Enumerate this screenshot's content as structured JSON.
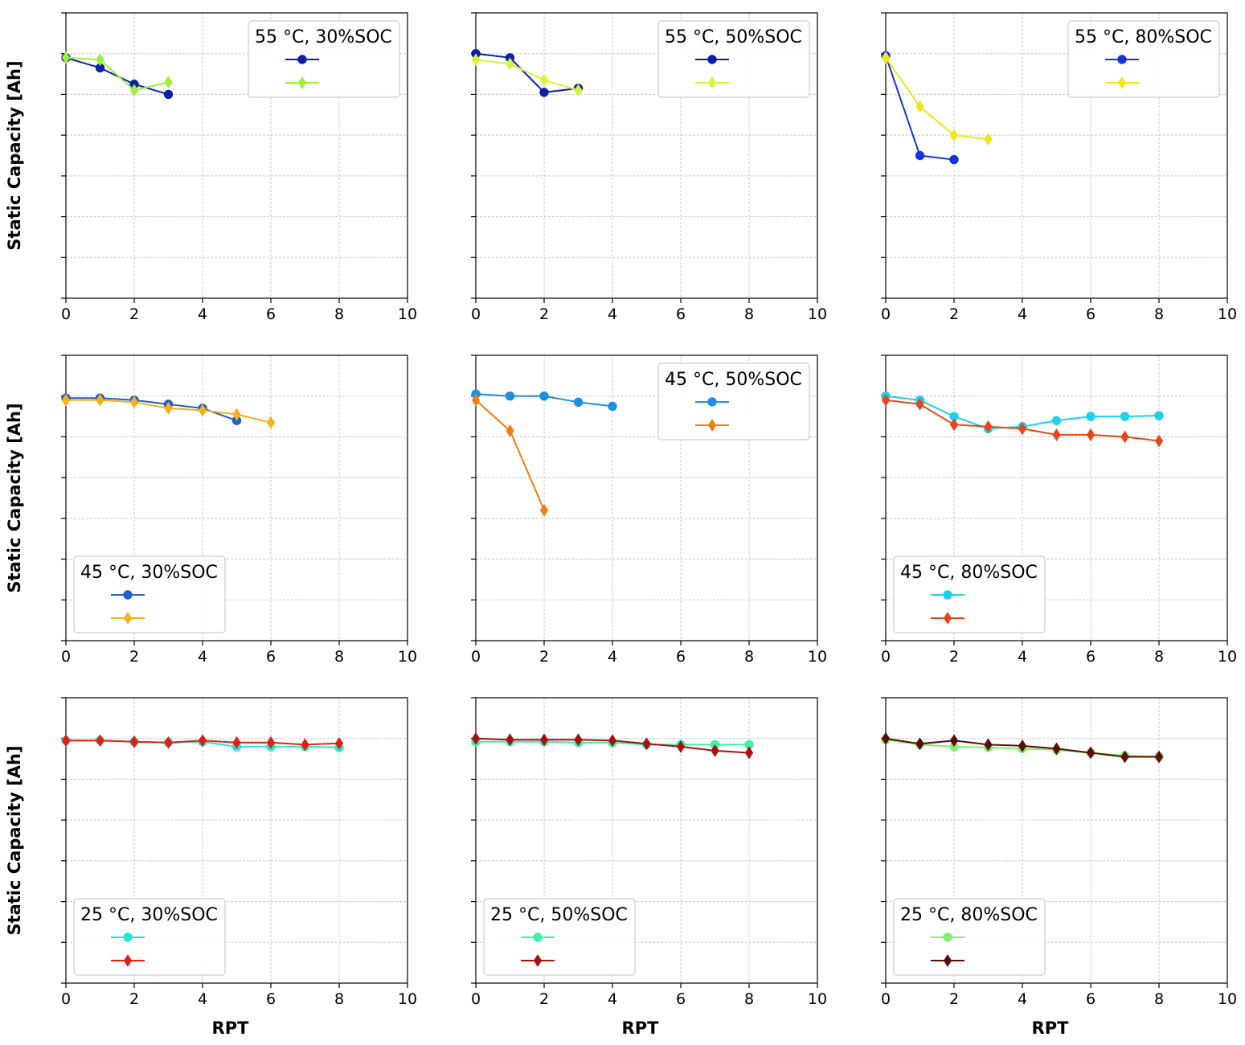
{
  "chart_data": [
    {
      "type": "line",
      "title": "55 °C, 30%SOC",
      "xlabel": "",
      "ylabel": "Static Capacity [Ah]",
      "xlim": [
        0,
        10
      ],
      "ylim": [
        0,
        7
      ],
      "xticks": [
        "0",
        "2",
        "4",
        "6",
        "8",
        "10"
      ],
      "grid": true,
      "legend_position": "upper right",
      "legend_entries": [
        "",
        ""
      ],
      "series": [
        {
          "name": "",
          "color": "#0c1fa6",
          "marker": "circle",
          "x": [
            0,
            1,
            2,
            3
          ],
          "y": [
            5.9,
            5.65,
            5.25,
            5.0
          ]
        },
        {
          "name": "",
          "color": "#9af23a",
          "marker": "diamond",
          "x": [
            0,
            1,
            2,
            3
          ],
          "y": [
            5.9,
            5.85,
            5.1,
            5.3
          ]
        }
      ]
    },
    {
      "type": "line",
      "title": "55 °C, 50%SOC",
      "xlabel": "",
      "ylabel": "",
      "xlim": [
        0,
        10
      ],
      "ylim": [
        0,
        7
      ],
      "xticks": [
        "0",
        "2",
        "4",
        "6",
        "8",
        "10"
      ],
      "grid": true,
      "legend_position": "upper right",
      "legend_entries": [
        "",
        ""
      ],
      "series": [
        {
          "name": "",
          "color": "#0c1fa6",
          "marker": "circle",
          "x": [
            0,
            1,
            2,
            3
          ],
          "y": [
            6.0,
            5.9,
            5.05,
            5.15
          ]
        },
        {
          "name": "",
          "color": "#d2f537",
          "marker": "diamond",
          "x": [
            0,
            1,
            2,
            3
          ],
          "y": [
            5.85,
            5.75,
            5.35,
            5.1
          ]
        }
      ]
    },
    {
      "type": "line",
      "title": "55 °C, 80%SOC",
      "xlabel": "",
      "ylabel": "",
      "xlim": [
        0,
        10
      ],
      "ylim": [
        0,
        7
      ],
      "xticks": [
        "0",
        "2",
        "4",
        "6",
        "8",
        "10"
      ],
      "grid": true,
      "legend_position": "upper right",
      "legend_entries": [
        "",
        ""
      ],
      "series": [
        {
          "name": "",
          "color": "#1432d9",
          "marker": "circle",
          "x": [
            0,
            1,
            2
          ],
          "y": [
            5.95,
            3.5,
            3.4
          ]
        },
        {
          "name": "",
          "color": "#f2e51c",
          "marker": "diamond",
          "x": [
            0,
            1,
            2,
            3
          ],
          "y": [
            5.9,
            4.7,
            4.0,
            3.9
          ]
        }
      ]
    },
    {
      "type": "line",
      "title": "45 °C, 30%SOC",
      "xlabel": "",
      "ylabel": "Static Capacity [Ah]",
      "xlim": [
        0,
        10
      ],
      "ylim": [
        0,
        7
      ],
      "xticks": [
        "0",
        "2",
        "4",
        "6",
        "8",
        "10"
      ],
      "grid": true,
      "legend_position": "lower left",
      "legend_entries": [
        "",
        ""
      ],
      "series": [
        {
          "name": "",
          "color": "#1f5fcc",
          "marker": "circle",
          "x": [
            0,
            1,
            2,
            3,
            4,
            5
          ],
          "y": [
            5.95,
            5.95,
            5.9,
            5.8,
            5.7,
            5.4
          ]
        },
        {
          "name": "",
          "color": "#f5b01a",
          "marker": "diamond",
          "x": [
            0,
            1,
            2,
            3,
            4,
            5,
            6
          ],
          "y": [
            5.9,
            5.9,
            5.85,
            5.7,
            5.65,
            5.55,
            5.35
          ]
        }
      ]
    },
    {
      "type": "line",
      "title": "45 °C, 50%SOC",
      "xlabel": "",
      "ylabel": "",
      "xlim": [
        0,
        10
      ],
      "ylim": [
        0,
        7
      ],
      "xticks": [
        "0",
        "2",
        "4",
        "6",
        "8",
        "10"
      ],
      "grid": true,
      "legend_position": "upper right",
      "legend_entries": [
        "",
        ""
      ],
      "series": [
        {
          "name": "",
          "color": "#1a8fe0",
          "marker": "circle",
          "x": [
            0,
            1,
            2,
            3,
            4
          ],
          "y": [
            6.05,
            6.0,
            6.0,
            5.85,
            5.75
          ]
        },
        {
          "name": "",
          "color": "#f07c12",
          "marker": "diamond",
          "x": [
            0,
            1,
            2
          ],
          "y": [
            5.9,
            5.15,
            3.2
          ]
        }
      ]
    },
    {
      "type": "line",
      "title": "45 °C, 80%SOC",
      "xlabel": "",
      "ylabel": "",
      "xlim": [
        0,
        10
      ],
      "ylim": [
        0,
        7
      ],
      "xticks": [
        "0",
        "2",
        "4",
        "6",
        "8",
        "10"
      ],
      "grid": true,
      "legend_position": "lower left",
      "legend_entries": [
        "",
        ""
      ],
      "series": [
        {
          "name": "",
          "color": "#1fd0ea",
          "marker": "circle",
          "x": [
            0,
            1,
            2,
            3,
            4,
            5,
            6,
            7,
            8
          ],
          "y": [
            6.0,
            5.9,
            5.5,
            5.2,
            5.25,
            5.4,
            5.5,
            5.5,
            5.52
          ]
        },
        {
          "name": "",
          "color": "#e8461a",
          "marker": "diamond",
          "x": [
            0,
            1,
            2,
            3,
            4,
            5,
            6,
            7,
            8
          ],
          "y": [
            5.9,
            5.8,
            5.3,
            5.25,
            5.2,
            5.05,
            5.05,
            5.0,
            4.9
          ]
        }
      ]
    },
    {
      "type": "line",
      "title": "25 °C, 30%SOC",
      "xlabel": "RPT",
      "ylabel": "Static Capacity [Ah]",
      "xlim": [
        0,
        10
      ],
      "ylim": [
        0,
        7
      ],
      "xticks": [
        "0",
        "2",
        "4",
        "6",
        "8",
        "10"
      ],
      "grid": true,
      "legend_position": "lower left",
      "legend_entries": [
        "",
        ""
      ],
      "series": [
        {
          "name": "",
          "color": "#28e6d2",
          "marker": "circle",
          "x": [
            0,
            1,
            2,
            3,
            4,
            5,
            6,
            7,
            8
          ],
          "y": [
            5.95,
            5.95,
            5.92,
            5.9,
            5.92,
            5.8,
            5.8,
            5.8,
            5.78
          ]
        },
        {
          "name": "",
          "color": "#e02015",
          "marker": "diamond",
          "x": [
            0,
            1,
            2,
            3,
            4,
            5,
            6,
            7,
            8
          ],
          "y": [
            5.95,
            5.95,
            5.92,
            5.9,
            5.95,
            5.9,
            5.9,
            5.85,
            5.88
          ]
        }
      ]
    },
    {
      "type": "line",
      "title": "25 °C, 50%SOC",
      "xlabel": "RPT",
      "ylabel": "",
      "xlim": [
        0,
        10
      ],
      "ylim": [
        0,
        7
      ],
      "xticks": [
        "0",
        "2",
        "4",
        "6",
        "8",
        "10"
      ],
      "grid": true,
      "legend_position": "lower left",
      "legend_entries": [
        "",
        ""
      ],
      "series": [
        {
          "name": "",
          "color": "#3ef0a8",
          "marker": "circle",
          "x": [
            0,
            1,
            2,
            3,
            4,
            5,
            6,
            7,
            8
          ],
          "y": [
            5.92,
            5.92,
            5.92,
            5.9,
            5.9,
            5.85,
            5.85,
            5.85,
            5.85
          ]
        },
        {
          "name": "",
          "color": "#a81010",
          "marker": "diamond",
          "x": [
            0,
            1,
            2,
            3,
            4,
            5,
            6,
            7,
            8
          ],
          "y": [
            6.0,
            5.97,
            5.97,
            5.97,
            5.95,
            5.87,
            5.8,
            5.7,
            5.65
          ]
        }
      ]
    },
    {
      "type": "line",
      "title": "25 °C, 80%SOC",
      "xlabel": "RPT",
      "ylabel": "",
      "xlim": [
        0,
        10
      ],
      "ylim": [
        0,
        7
      ],
      "xticks": [
        "0",
        "2",
        "4",
        "6",
        "8",
        "10"
      ],
      "grid": true,
      "legend_position": "lower left",
      "legend_entries": [
        "",
        ""
      ],
      "series": [
        {
          "name": "",
          "color": "#7ef06a",
          "marker": "circle",
          "x": [
            0,
            1,
            2,
            3,
            4,
            5,
            6,
            7,
            8
          ],
          "y": [
            5.97,
            5.85,
            5.8,
            5.78,
            5.75,
            5.72,
            5.65,
            5.58,
            5.55
          ]
        },
        {
          "name": "",
          "color": "#5c0c08",
          "marker": "diamond",
          "x": [
            0,
            1,
            2,
            3,
            4,
            5,
            6,
            7,
            8
          ],
          "y": [
            6.0,
            5.87,
            5.95,
            5.85,
            5.82,
            5.75,
            5.65,
            5.55,
            5.55
          ]
        }
      ]
    }
  ]
}
